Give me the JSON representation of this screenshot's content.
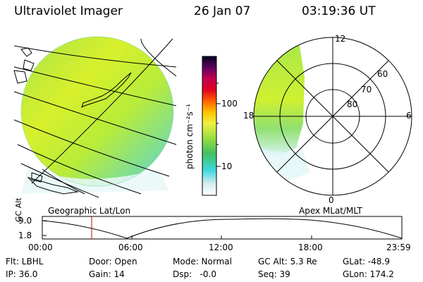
{
  "header": {
    "title": "Ultraviolet Imager",
    "date": "26 Jan 07",
    "time": "03:19:36 UT"
  },
  "colorbar": {
    "label": "photon cm⁻²s⁻¹",
    "ticks": [
      "100",
      "10"
    ]
  },
  "polar_plot": {
    "lat_labels": [
      "80",
      "70",
      "60"
    ],
    "mlt_labels": [
      "12",
      "18",
      "6",
      "0"
    ]
  },
  "panels": {
    "left_caption": "Geographic Lat/Lon",
    "right_caption": "Apex MLat/MLT"
  },
  "altitude_chart": {
    "ylabel": "GC Alt",
    "y_ticks": [
      "9.0",
      "1.8"
    ],
    "x_ticks": [
      "00:00",
      "06:00",
      "12:00",
      "18:00",
      "23:59"
    ]
  },
  "info": {
    "row1": {
      "filter": "Flt: LBHL",
      "door": "Door: Open",
      "mode": "Mode: Normal",
      "gc_alt": "GC Alt: 5.3 Re",
      "glat": "GLat: -48.9"
    },
    "row2": {
      "ip": "IP: 36.0",
      "gain": "Gain: 14",
      "dsp": "Dsp:   -0.0",
      "seq": "Seq: 39",
      "glon": "GLon: 174.2"
    }
  },
  "colors": {
    "aurora_yellow": "#d8f02c",
    "aurora_green": "#8ce04a",
    "aurora_cyan": "#5ce0d8",
    "marker": "#cc0000"
  }
}
